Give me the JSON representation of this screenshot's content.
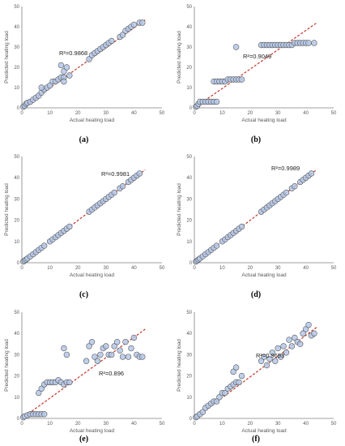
{
  "figure": {
    "axis_ranges": {
      "x": [
        0,
        50
      ],
      "y": [
        0,
        50
      ]
    },
    "ticks": [
      0,
      10,
      20,
      30,
      40,
      50
    ],
    "colors": {
      "axis": "#808080",
      "marker_fill": "#b4c7e7",
      "marker_edge": "#5a5a5a",
      "fit_line": "#c0392b"
    }
  },
  "chart_data": [
    {
      "type": "scatter",
      "panel_label": "(a)",
      "xlabel": "Actual heating load",
      "ylabel": "Predicted heating load",
      "xlim": [
        0,
        50
      ],
      "ylim": [
        0,
        50
      ],
      "r2_text": "R²=0.9868",
      "trendline": {
        "x": [
          0,
          44
        ],
        "y": [
          0,
          43.4
        ]
      },
      "points": [
        [
          0.5,
          0.5
        ],
        [
          1,
          1
        ],
        [
          1.5,
          2
        ],
        [
          2,
          2.5
        ],
        [
          3,
          3
        ],
        [
          4,
          4
        ],
        [
          5,
          5
        ],
        [
          6,
          6
        ],
        [
          7,
          7.5
        ],
        [
          8,
          9
        ],
        [
          7,
          10
        ],
        [
          9,
          10
        ],
        [
          10,
          11
        ],
        [
          11,
          13
        ],
        [
          12,
          13
        ],
        [
          13,
          14
        ],
        [
          14,
          15
        ],
        [
          15,
          15
        ],
        [
          15,
          18
        ],
        [
          14,
          21
        ],
        [
          16,
          20
        ],
        [
          15,
          13
        ],
        [
          17,
          16
        ],
        [
          24,
          24
        ],
        [
          25,
          26
        ],
        [
          26,
          27
        ],
        [
          27,
          28
        ],
        [
          28,
          29
        ],
        [
          29,
          30
        ],
        [
          30,
          31
        ],
        [
          31,
          32
        ],
        [
          32,
          33
        ],
        [
          35,
          35
        ],
        [
          36,
          36
        ],
        [
          37,
          38
        ],
        [
          38,
          39
        ],
        [
          39,
          40
        ],
        [
          40,
          41
        ],
        [
          42,
          42
        ],
        [
          43,
          42
        ]
      ]
    },
    {
      "type": "scatter",
      "panel_label": "(b)",
      "xlabel": "Actual heating load",
      "ylabel": "Predicted heating load",
      "xlim": [
        0,
        50
      ],
      "ylim": [
        0,
        50
      ],
      "r2_text": "R²=0.9049",
      "trendline": {
        "x": [
          0,
          44
        ],
        "y": [
          0,
          42
        ]
      },
      "points": [
        [
          0.5,
          0.5
        ],
        [
          1,
          1
        ],
        [
          1.5,
          2
        ],
        [
          2,
          3
        ],
        [
          3,
          3
        ],
        [
          4,
          3
        ],
        [
          5,
          3
        ],
        [
          6,
          3
        ],
        [
          7,
          3
        ],
        [
          8,
          3
        ],
        [
          7,
          13
        ],
        [
          8,
          13
        ],
        [
          9,
          13
        ],
        [
          10,
          13
        ],
        [
          11,
          13
        ],
        [
          12,
          14
        ],
        [
          13,
          14
        ],
        [
          14,
          14
        ],
        [
          15,
          14
        ],
        [
          16,
          14
        ],
        [
          17,
          14
        ],
        [
          15,
          30
        ],
        [
          24,
          31
        ],
        [
          25,
          31
        ],
        [
          26,
          31
        ],
        [
          27,
          31
        ],
        [
          28,
          31
        ],
        [
          29,
          31
        ],
        [
          30,
          31
        ],
        [
          31,
          31
        ],
        [
          32,
          31
        ],
        [
          33,
          31
        ],
        [
          34,
          31
        ],
        [
          35,
          31
        ],
        [
          36,
          32
        ],
        [
          37,
          32
        ],
        [
          38,
          32
        ],
        [
          39,
          32
        ],
        [
          40,
          32
        ],
        [
          41,
          32
        ],
        [
          43,
          32
        ]
      ]
    },
    {
      "type": "scatter",
      "panel_label": "(c)",
      "xlabel": "Actual heating load",
      "ylabel": "Predicted heating load",
      "xlim": [
        0,
        50
      ],
      "ylim": [
        0,
        50
      ],
      "r2_text": "R²=0.9981",
      "trendline": {
        "x": [
          0,
          44
        ],
        "y": [
          0,
          43.8
        ]
      },
      "points": [
        [
          0.5,
          0.5
        ],
        [
          1,
          1
        ],
        [
          1.5,
          1.5
        ],
        [
          2,
          2
        ],
        [
          3,
          3
        ],
        [
          4,
          4
        ],
        [
          5,
          5
        ],
        [
          6,
          6
        ],
        [
          7,
          7
        ],
        [
          8,
          8
        ],
        [
          10,
          10
        ],
        [
          11,
          11
        ],
        [
          12,
          12
        ],
        [
          13,
          13
        ],
        [
          14,
          14
        ],
        [
          15,
          15
        ],
        [
          16,
          16
        ],
        [
          17,
          17
        ],
        [
          24,
          24
        ],
        [
          25,
          25
        ],
        [
          26,
          26
        ],
        [
          27,
          27
        ],
        [
          28,
          28
        ],
        [
          29,
          29
        ],
        [
          30,
          30
        ],
        [
          31,
          31
        ],
        [
          32,
          32
        ],
        [
          33,
          33
        ],
        [
          35,
          35
        ],
        [
          36,
          36
        ],
        [
          38,
          38
        ],
        [
          39,
          39
        ],
        [
          40,
          40
        ],
        [
          41,
          41
        ],
        [
          42,
          42
        ]
      ]
    },
    {
      "type": "scatter",
      "panel_label": "(d)",
      "xlabel": "Actual heating load",
      "ylabel": "Predicted heating load",
      "xlim": [
        0,
        50
      ],
      "ylim": [
        0,
        50
      ],
      "r2_text": "R²=0.9989",
      "trendline": {
        "x": [
          0,
          44
        ],
        "y": [
          0,
          43.9
        ]
      },
      "points": [
        [
          0.5,
          0.5
        ],
        [
          1,
          1
        ],
        [
          1.5,
          1.5
        ],
        [
          2,
          2
        ],
        [
          3,
          3
        ],
        [
          4,
          4
        ],
        [
          5,
          5
        ],
        [
          6,
          6
        ],
        [
          7,
          7
        ],
        [
          8,
          8
        ],
        [
          10,
          10
        ],
        [
          11,
          11
        ],
        [
          12,
          12
        ],
        [
          13,
          13
        ],
        [
          14,
          14
        ],
        [
          15,
          15
        ],
        [
          16,
          16
        ],
        [
          17,
          17
        ],
        [
          24,
          24
        ],
        [
          25,
          25
        ],
        [
          26,
          26
        ],
        [
          27,
          27
        ],
        [
          28,
          28
        ],
        [
          29,
          29
        ],
        [
          30,
          30
        ],
        [
          31,
          31
        ],
        [
          32,
          32
        ],
        [
          33,
          33
        ],
        [
          35,
          35
        ],
        [
          36,
          36
        ],
        [
          38,
          38
        ],
        [
          39,
          39
        ],
        [
          40,
          40
        ],
        [
          41,
          41
        ],
        [
          42,
          42
        ]
      ]
    },
    {
      "type": "scatter",
      "panel_label": "(e)",
      "xlabel": "Actual heating load",
      "ylabel": "Predicted heating load",
      "xlim": [
        0,
        50
      ],
      "ylim": [
        0,
        50
      ],
      "r2_text": "R²=0.896",
      "trendline": {
        "x": [
          0,
          44
        ],
        "y": [
          0,
          42
        ]
      },
      "points": [
        [
          0.5,
          0.5
        ],
        [
          1,
          1
        ],
        [
          2,
          1.5
        ],
        [
          3,
          2
        ],
        [
          4,
          2
        ],
        [
          5,
          2
        ],
        [
          6,
          2
        ],
        [
          7,
          2
        ],
        [
          8,
          2
        ],
        [
          6,
          12
        ],
        [
          7,
          14
        ],
        [
          8,
          16
        ],
        [
          9,
          17
        ],
        [
          10,
          17
        ],
        [
          11,
          17
        ],
        [
          12,
          17
        ],
        [
          13,
          18
        ],
        [
          14,
          17
        ],
        [
          15,
          16
        ],
        [
          16,
          17
        ],
        [
          17,
          17
        ],
        [
          15,
          33
        ],
        [
          16,
          30
        ],
        [
          23,
          27
        ],
        [
          24,
          34
        ],
        [
          25,
          36
        ],
        [
          26,
          29
        ],
        [
          27,
          27
        ],
        [
          28,
          30
        ],
        [
          29,
          33
        ],
        [
          30,
          34
        ],
        [
          31,
          30
        ],
        [
          32,
          30
        ],
        [
          33,
          34
        ],
        [
          34,
          36
        ],
        [
          35,
          32
        ],
        [
          36,
          29
        ],
        [
          37,
          36
        ],
        [
          38,
          29
        ],
        [
          39,
          33
        ],
        [
          40,
          38
        ],
        [
          41,
          30
        ],
        [
          42,
          29
        ],
        [
          43,
          29
        ]
      ]
    },
    {
      "type": "scatter",
      "panel_label": "(f)",
      "xlabel": "Actual heating load",
      "ylabel": "Predicted heating load",
      "xlim": [
        0,
        50
      ],
      "ylim": [
        0,
        50
      ],
      "r2_text": "R²=0.9693",
      "trendline": {
        "x": [
          0,
          44
        ],
        "y": [
          0,
          43
        ]
      },
      "points": [
        [
          0.5,
          0.5
        ],
        [
          1,
          1
        ],
        [
          2,
          2
        ],
        [
          3,
          3
        ],
        [
          4,
          5
        ],
        [
          5,
          6
        ],
        [
          6,
          7
        ],
        [
          7,
          8
        ],
        [
          8,
          8
        ],
        [
          9,
          10
        ],
        [
          10,
          12
        ],
        [
          11,
          12
        ],
        [
          12,
          14
        ],
        [
          13,
          15
        ],
        [
          14,
          16
        ],
        [
          15,
          17
        ],
        [
          16,
          17
        ],
        [
          17,
          20
        ],
        [
          14,
          22
        ],
        [
          15,
          24
        ],
        [
          24,
          27
        ],
        [
          25,
          29
        ],
        [
          26,
          25
        ],
        [
          27,
          28
        ],
        [
          28,
          31
        ],
        [
          29,
          27
        ],
        [
          30,
          33
        ],
        [
          31,
          29
        ],
        [
          32,
          34
        ],
        [
          33,
          31
        ],
        [
          34,
          37
        ],
        [
          35,
          34
        ],
        [
          36,
          38
        ],
        [
          37,
          36
        ],
        [
          38,
          35
        ],
        [
          39,
          40
        ],
        [
          40,
          42
        ],
        [
          41,
          44
        ],
        [
          42,
          39
        ],
        [
          43,
          40
        ]
      ]
    }
  ]
}
